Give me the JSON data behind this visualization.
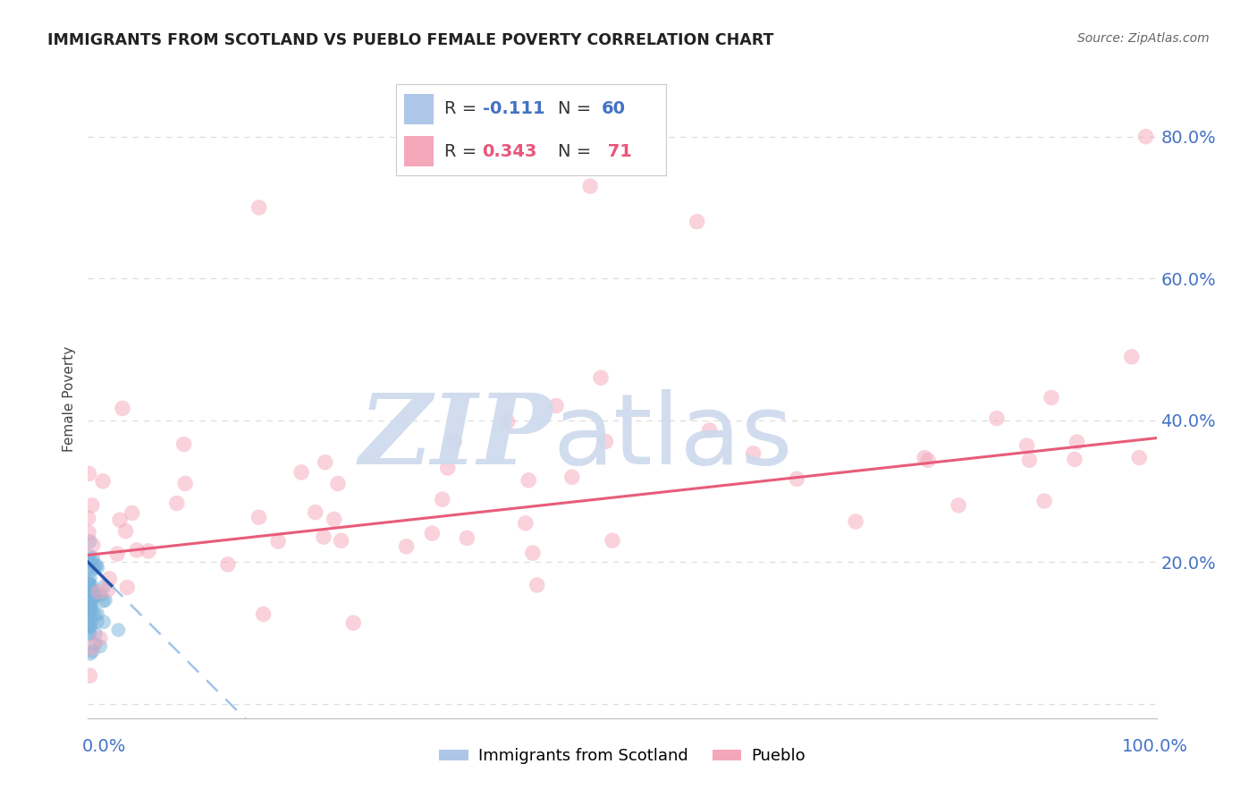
{
  "title": "IMMIGRANTS FROM SCOTLAND VS PUEBLO FEMALE POVERTY CORRELATION CHART",
  "source": "Source: ZipAtlas.com",
  "ylabel": "Female Poverty",
  "xlim": [
    0.0,
    1.0
  ],
  "ylim": [
    -0.02,
    0.88
  ],
  "ytick_vals": [
    0.0,
    0.2,
    0.4,
    0.6,
    0.8
  ],
  "ytick_labels": [
    "",
    "20.0%",
    "40.0%",
    "60.0%",
    "80.0%"
  ],
  "blue_scatter_color": "#7ab3db",
  "pink_scatter_color": "#f4a6bb",
  "blue_line_solid_color": "#2255aa",
  "pink_line_color": "#e85c7a",
  "blue_dashed_color": "#a0c4e8",
  "watermark_zip_color": "#ccdaed",
  "watermark_atlas_color": "#ccdaed",
  "background_color": "#ffffff",
  "grid_color": "#dddddd",
  "legend_box_color": "#ffffff",
  "legend_border_color": "#cccccc",
  "blue_legend_rect": "#aec6e8",
  "pink_legend_rect": "#f4a7b9",
  "blue_text_color": "#4472c4",
  "pink_text_color": "#e8567a",
  "axis_label_color": "#4472c4",
  "title_color": "#222222",
  "source_color": "#666666",
  "ylabel_color": "#444444"
}
